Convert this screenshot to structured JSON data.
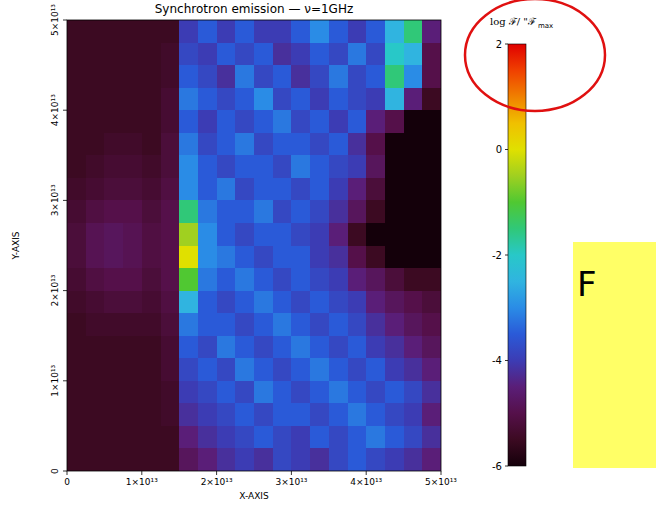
{
  "chart_data": {
    "type": "heatmap",
    "title": "Synchrotron emission —  ν=1GHz",
    "x_label": "X-AXIS",
    "y_label": "Y-AXIS",
    "xlim": [
      0,
      50000000000000.0
    ],
    "ylim": [
      0,
      50000000000000.0
    ],
    "xticks": [
      0,
      {
        "value": 10000000000000.0,
        "label": "1×10¹³"
      },
      {
        "value": 20000000000000.0,
        "label": "2×10¹³"
      },
      {
        "value": 30000000000000.0,
        "label": "3×10¹³"
      },
      {
        "value": 40000000000000.0,
        "label": "4×10¹³"
      },
      {
        "value": 50000000000000.0,
        "label": "5×10¹³"
      }
    ],
    "yticks": [
      0,
      {
        "value": 10000000000000.0,
        "label": "1×10¹³"
      },
      {
        "value": 20000000000000.0,
        "label": "2×10¹³"
      },
      {
        "value": 30000000000000.0,
        "label": "3×10¹³"
      },
      {
        "value": 40000000000000.0,
        "label": "4×10¹³"
      },
      {
        "value": 50000000000000.0,
        "label": "5×10¹³"
      }
    ],
    "x": [
      1250000000000.0,
      3750000000000.0,
      6250000000000.0,
      8750000000000.0,
      11250000000000.0,
      13750000000000.0,
      16250000000000.0,
      18750000000000.0,
      21250000000000.0,
      23750000000000.0,
      26250000000000.0,
      28750000000000.0,
      31250000000000.0,
      33750000000000.0,
      36250000000000.0,
      38750000000000.0,
      41250000000000.0,
      43750000000000.0,
      46250000000000.0,
      48750000000000.0
    ],
    "y": [
      48750000000000.0,
      46250000000000.0,
      43750000000000.0,
      41250000000000.0,
      38750000000000.0,
      36250000000000.0,
      33750000000000.0,
      31250000000000.0,
      28750000000000.0,
      26250000000000.0,
      23750000000000.0,
      21250000000000.0,
      18750000000000.0,
      16250000000000.0,
      13750000000000.0,
      11250000000000.0,
      8750000000000.0,
      6250000000000.0,
      3750000000000.0,
      1250000000000.0
    ],
    "values": [
      [
        -5.5,
        -5.5,
        -5.5,
        -5.5,
        -5.5,
        -5.5,
        -4,
        -3.5,
        -4,
        -3.5,
        -4,
        -4,
        -3.5,
        -3,
        -3.5,
        -4,
        -3.5,
        -2.5,
        -1.5,
        -4.5
      ],
      [
        -5.5,
        -5.5,
        -5.5,
        -5.5,
        -5.5,
        -5.4,
        -3.8,
        -4,
        -3.5,
        -3.8,
        -3.5,
        -4.2,
        -4,
        -3.5,
        -3.8,
        -3.2,
        -3.8,
        -2,
        -2.5,
        -5
      ],
      [
        -5.5,
        -5.5,
        -5.5,
        -5.5,
        -5.5,
        -5.4,
        -3.5,
        -3.8,
        -4.2,
        -3.2,
        -3.8,
        -3.5,
        -4.2,
        -3.8,
        -3.2,
        -3.8,
        -3.5,
        -1.5,
        -3,
        -5
      ],
      [
        -5.5,
        -5.5,
        -5.5,
        -5.5,
        -5.5,
        -5.3,
        -3.2,
        -3.5,
        -3.8,
        -3.5,
        -3,
        -3.8,
        -3.5,
        -4,
        -3.5,
        -3.8,
        -4,
        -2.5,
        -4.5,
        -5.5
      ],
      [
        -5.5,
        -5.5,
        -5.5,
        -5.5,
        -5.5,
        -5.3,
        -3.5,
        -4,
        -3.5,
        -3.8,
        -3.5,
        -3.2,
        -3.8,
        -3.5,
        -4,
        -3.5,
        -4.5,
        -5,
        -6,
        -6
      ],
      [
        -5.5,
        -5.5,
        -5.4,
        -5.4,
        -5.5,
        -5.2,
        -3.2,
        -3.8,
        -3.5,
        -3.2,
        -3.8,
        -3.5,
        -3.5,
        -3.8,
        -3.5,
        -4.2,
        -5,
        -6,
        -6,
        -6
      ],
      [
        -5.5,
        -5.4,
        -5.3,
        -5.3,
        -5.4,
        -5.2,
        -3,
        -3.5,
        -3.8,
        -3.5,
        -3.5,
        -3.8,
        -3.2,
        -3.5,
        -3.8,
        -4,
        -4.8,
        -6,
        -6,
        -6
      ],
      [
        -5.4,
        -5.3,
        -5.2,
        -5.2,
        -5.3,
        -5.1,
        -3,
        -3.5,
        -3.2,
        -3.8,
        -3.5,
        -3.5,
        -3.8,
        -3.5,
        -4,
        -4.5,
        -5.2,
        -6,
        -6,
        -6
      ],
      [
        -5.3,
        -5.1,
        -5,
        -5,
        -5.2,
        -5,
        -1.5,
        -3.2,
        -3.5,
        -3.5,
        -3.2,
        -3.8,
        -3.5,
        -3.8,
        -4.2,
        -4.8,
        -5.5,
        -6,
        -6,
        -6
      ],
      [
        -5.2,
        -4.9,
        -4.8,
        -4.9,
        -5.1,
        -5,
        -0.5,
        -3,
        -3.5,
        -3.8,
        -3.5,
        -3.5,
        -3.8,
        -4,
        -4.5,
        -5.5,
        -6,
        -6,
        -6,
        -6
      ],
      [
        -5.2,
        -4.9,
        -4.8,
        -4.9,
        -5.1,
        -5,
        0,
        -3,
        -3.2,
        -3.5,
        -3.8,
        -3.5,
        -3.5,
        -4,
        -4.2,
        -5,
        -5.5,
        -6,
        -6,
        -6
      ],
      [
        -5.3,
        -5.1,
        -5,
        -5,
        -5.2,
        -5,
        -1,
        -3.2,
        -3.5,
        -3.2,
        -3.5,
        -3.8,
        -3.5,
        -3.8,
        -4,
        -4.5,
        -4.8,
        -5.2,
        -5.5,
        -5.5
      ],
      [
        -5.4,
        -5.3,
        -5.2,
        -5.2,
        -5.3,
        -5.1,
        -2.5,
        -3.5,
        -3.8,
        -3.5,
        -3.2,
        -3.5,
        -3.8,
        -3.5,
        -3.8,
        -4,
        -4.5,
        -4.8,
        -5,
        -5.2
      ],
      [
        -5.5,
        -5.4,
        -5.4,
        -5.4,
        -5.4,
        -5.2,
        -3.2,
        -3.5,
        -3.5,
        -3.8,
        -3.5,
        -3.2,
        -3.5,
        -3.8,
        -3.5,
        -3.8,
        -4.2,
        -4.5,
        -4.8,
        -5
      ],
      [
        -5.5,
        -5.5,
        -5.5,
        -5.5,
        -5.5,
        -5.3,
        -3.5,
        -3.8,
        -3.2,
        -3.5,
        -3.8,
        -3.5,
        -3.2,
        -3.5,
        -3.8,
        -3.5,
        -4,
        -4.2,
        -4.5,
        -4.8
      ],
      [
        -5.5,
        -5.5,
        -5.5,
        -5.5,
        -5.5,
        -5.3,
        -3.8,
        -3.5,
        -3.8,
        -3.2,
        -3.5,
        -3.8,
        -3.5,
        -3.2,
        -3.5,
        -3.8,
        -3.5,
        -4,
        -4.2,
        -4.5
      ],
      [
        -5.5,
        -5.5,
        -5.5,
        -5.5,
        -5.5,
        -5.4,
        -4,
        -3.8,
        -3.5,
        -3.8,
        -3.2,
        -3.5,
        -3.8,
        -3.5,
        -3.2,
        -3.5,
        -3.8,
        -3.5,
        -3.8,
        -4.2
      ],
      [
        -5.5,
        -5.5,
        -5.5,
        -5.5,
        -5.5,
        -5.4,
        -4.2,
        -4,
        -3.8,
        -3.5,
        -3.8,
        -3.5,
        -3.5,
        -3.8,
        -3.5,
        -3.2,
        -3.5,
        -3.8,
        -4,
        -4.5
      ],
      [
        -5.5,
        -5.5,
        -5.5,
        -5.5,
        -5.5,
        -5.5,
        -4.5,
        -4.2,
        -4,
        -3.8,
        -3.5,
        -3.8,
        -4,
        -3.5,
        -3.8,
        -3.5,
        -3.2,
        -3.5,
        -3.8,
        -4.2
      ],
      [
        -5.5,
        -5.5,
        -5.5,
        -5.5,
        -5.5,
        -5.5,
        -4.8,
        -4.5,
        -4.2,
        -4,
        -4.2,
        -3.8,
        -4,
        -4.2,
        -3.8,
        -3.5,
        -3.8,
        -4,
        -4.2,
        -4.5
      ]
    ],
    "colorbar_label": "log ℱ/ \"ℱ",
    "colorbar_label_sub": "max",
    "colorbar_lim": [
      -6,
      2
    ],
    "colorbar_ticks": [
      -6,
      -4,
      -2,
      0,
      2
    ],
    "annotation": "F"
  }
}
